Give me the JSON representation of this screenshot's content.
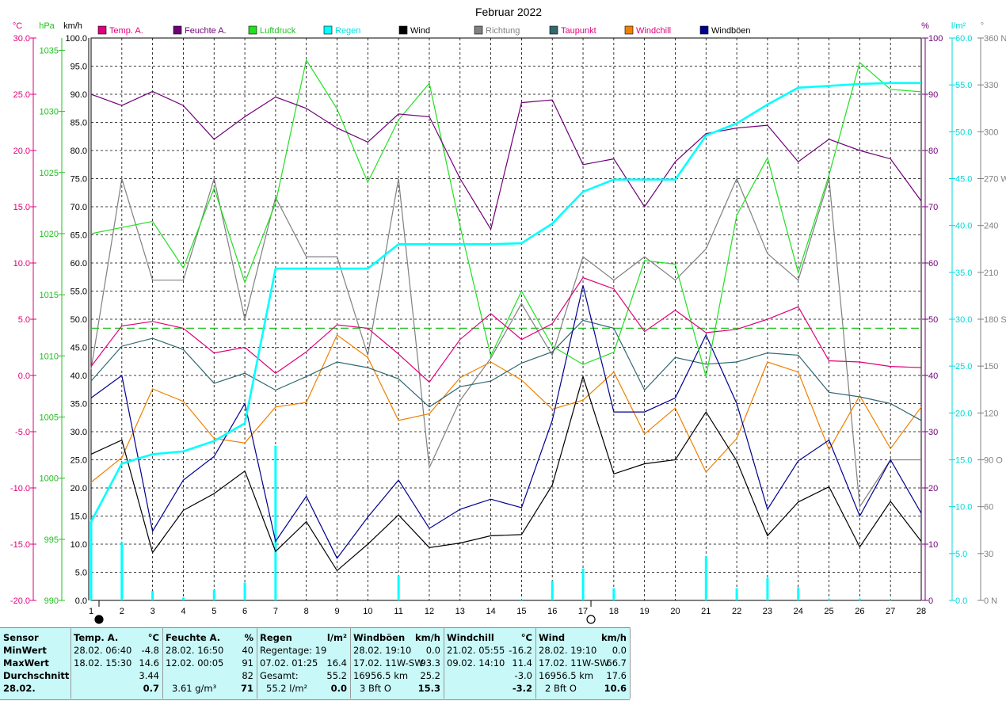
{
  "title": "Februar 2022",
  "axes": {
    "left_units": [
      "°C",
      "hPa",
      "km/h"
    ],
    "right_units": [
      "%",
      "l/m²",
      "°"
    ],
    "temp_ticks": [
      "30.0",
      "25.0",
      "20.0",
      "15.0",
      "10.0",
      "5.0",
      "0.0",
      "-5.0",
      "-10.0",
      "-15.0",
      "-20.0"
    ],
    "hpa_ticks": [
      "1035",
      "1030",
      "1025",
      "1020",
      "1015",
      "1010",
      "1005",
      "1000",
      "995",
      "990"
    ],
    "kmh_ticks": [
      "100.0",
      "95.0",
      "90.0",
      "85.0",
      "80.0",
      "75.0",
      "70.0",
      "65.0",
      "60.0",
      "55.0",
      "50.0",
      "45.0",
      "40.0",
      "35.0",
      "30.0",
      "25.0",
      "20.0",
      "15.0",
      "10.0",
      "5.0",
      "0.0"
    ],
    "pct_ticks": [
      "100",
      "90",
      "80",
      "70",
      "60",
      "50",
      "40",
      "30",
      "20",
      "10",
      "0"
    ],
    "rain_ticks": [
      "60.0",
      "55.0",
      "50.0",
      "45.0",
      "40.0",
      "35.0",
      "30.0",
      "25.0",
      "20.0",
      "15.0",
      "10.0",
      "5.0",
      "0.0"
    ],
    "dir_ticks": [
      "360 N",
      "330",
      "300",
      "270 W",
      "240",
      "210",
      "180 S",
      "150",
      "120",
      "90 O",
      "60",
      "30",
      "0 N"
    ],
    "x_days": [
      "1",
      "2",
      "3",
      "4",
      "5",
      "6",
      "7",
      "8",
      "9",
      "10",
      "11",
      "12",
      "13",
      "14",
      "15",
      "16",
      "17",
      "18",
      "19",
      "20",
      "21",
      "22",
      "23",
      "24",
      "25",
      "26",
      "27",
      "28"
    ]
  },
  "legend": [
    {
      "label": "Temp. A.",
      "color": "#e0007a",
      "text_color": "#e0007a"
    },
    {
      "label": "Feuchte A.",
      "color": "#700078",
      "text_color": "#700078"
    },
    {
      "label": "Luftdruck",
      "color": "#20e020",
      "text_color": "#20c020"
    },
    {
      "label": "Regen",
      "color": "#00ffff",
      "text_color": "#00e0e0"
    },
    {
      "label": "Wind",
      "color": "#000000",
      "text_color": "#000000"
    },
    {
      "label": "Richtung",
      "color": "#808080",
      "text_color": "#808080"
    },
    {
      "label": "Taupunkt",
      "color": "#306870",
      "text_color": "#e0007a"
    },
    {
      "label": "Windchill",
      "color": "#f08000",
      "text_color": "#e0007a"
    },
    {
      "label": "Windböen",
      "color": "#000090",
      "text_color": "#000000"
    }
  ],
  "colors": {
    "temp": "#e0007a",
    "hum": "#700078",
    "press": "#20e020",
    "rain": "#00ffff",
    "wind": "#000000",
    "dir": "#808080",
    "dew": "#306870",
    "chill": "#f08000",
    "gust": "#000090",
    "avg_line": "#20c020",
    "temp_axis": "#e0007a",
    "press_axis": "#20c020",
    "hum_axis": "#700078",
    "rain_axis": "#00d8d8"
  },
  "chart_data": {
    "type": "line",
    "title": "Februar 2022",
    "x": [
      1,
      2,
      3,
      4,
      5,
      6,
      7,
      8,
      9,
      10,
      11,
      12,
      13,
      14,
      15,
      16,
      17,
      18,
      19,
      20,
      21,
      22,
      23,
      24,
      25,
      26,
      27,
      28
    ],
    "temp_range": [
      -20,
      30
    ],
    "pressure_range": [
      990,
      1036
    ],
    "kmh_range": [
      0,
      100
    ],
    "humidity_range": [
      0,
      100
    ],
    "rain_range": [
      0,
      60
    ],
    "direction_range": [
      0,
      360
    ],
    "grid": true,
    "legend_position": "top",
    "reference_line_temp": 4.2,
    "series": [
      {
        "name": "Temp. A.",
        "axis": "temp",
        "values": [
          0.8,
          4.4,
          4.8,
          4.2,
          2.0,
          2.5,
          0.2,
          2.1,
          4.5,
          4.2,
          1.9,
          -0.6,
          3.2,
          5.5,
          3.2,
          4.6,
          8.7,
          7.7,
          3.9,
          5.8,
          3.8,
          4.1,
          5.0,
          6.1,
          1.3,
          1.2,
          0.8,
          0.7
        ]
      },
      {
        "name": "Feuchte A.",
        "axis": "humidity",
        "values": [
          90,
          88,
          90.5,
          88,
          82,
          86,
          89.5,
          87.5,
          84,
          81.5,
          86.5,
          86,
          75,
          66,
          88.5,
          89,
          77.5,
          78.5,
          70,
          78,
          83,
          84,
          84.5,
          78,
          82,
          80,
          78.5,
          71
        ]
      },
      {
        "name": "Luftdruck",
        "axis": "pressure",
        "values": [
          1020.0,
          1020.5,
          1021.0,
          1017.2,
          1023.7,
          1016.0,
          1022.5,
          1034.2,
          1030.2,
          1024.2,
          1029.3,
          1032.3,
          1020.6,
          1010.0,
          1015.3,
          1010.8,
          1009.3,
          1010.3,
          1017.8,
          1017.5,
          1008.3,
          1021.5,
          1026.2,
          1016.8,
          1024.8,
          1034.0,
          1031.8,
          1031.6
        ]
      },
      {
        "name": "Regen",
        "axis": "rain",
        "type": "cumulative",
        "values": [
          8.4,
          14.6,
          15.6,
          15.9,
          17.0,
          18.9,
          35.4,
          35.4,
          35.4,
          35.4,
          38.0,
          38.0,
          38.0,
          38.0,
          38.1,
          40.2,
          43.6,
          44.9,
          44.9,
          44.9,
          49.6,
          50.9,
          52.9,
          54.7,
          54.9,
          55.1,
          55.2,
          55.2
        ]
      },
      {
        "name": "Regen",
        "axis": "rain",
        "type": "daily",
        "values": [
          8.4,
          6.2,
          1.0,
          0.3,
          1.1,
          1.9,
          16.5,
          0,
          0,
          0,
          2.6,
          0,
          0,
          0,
          0.1,
          2.1,
          3.4,
          1.3,
          0,
          0,
          4.7,
          1.3,
          2.4,
          1.4,
          0.2,
          0.2,
          0.1,
          0
        ]
      },
      {
        "name": "Wind",
        "axis": "kmh",
        "values": [
          26.0,
          28.5,
          8.5,
          16.0,
          19.0,
          23.0,
          8.7,
          14.0,
          5.3,
          10.0,
          15.2,
          9.4,
          10.2,
          11.5,
          11.7,
          20.5,
          39.8,
          22.5,
          24.3,
          25.0,
          33.5,
          24.8,
          11.5,
          17.5,
          20.2,
          9.5,
          17.6,
          10.5
        ]
      },
      {
        "name": "Richtung",
        "axis": "direction",
        "values": [
          148,
          270,
          205,
          205,
          270,
          180,
          258,
          220,
          220,
          157,
          270,
          85,
          128,
          155,
          190,
          157,
          220,
          205,
          220,
          205,
          225,
          270,
          222,
          205,
          270,
          60,
          90,
          90
        ]
      },
      {
        "name": "Taupunkt",
        "axis": "temp",
        "values": [
          -0.5,
          2.6,
          3.3,
          2.3,
          -0.7,
          0.2,
          -1.3,
          -0.1,
          1.2,
          0.7,
          -0.3,
          -2.8,
          -1.0,
          -0.5,
          1.1,
          2.1,
          4.9,
          4.2,
          -1.3,
          1.6,
          1.0,
          1.2,
          2.0,
          1.8,
          -1.5,
          -1.9,
          -2.5,
          -4.0
        ]
      },
      {
        "name": "Windchill",
        "axis": "temp",
        "values": [
          -9.5,
          -7.3,
          -1.2,
          -2.3,
          -5.6,
          -6.0,
          -2.8,
          -2.4,
          3.6,
          1.6,
          -4.0,
          -3.4,
          -0.2,
          1.2,
          -0.4,
          -3.0,
          -2.2,
          0.3,
          -5.2,
          -2.9,
          -8.6,
          -5.6,
          1.2,
          0.3,
          -6.6,
          -1.8,
          -6.5,
          -2.8
        ]
      },
      {
        "name": "Windböen",
        "axis": "kmh",
        "values": [
          36.0,
          40.0,
          12.3,
          21.4,
          25.6,
          35.0,
          10.5,
          18.5,
          7.5,
          14.8,
          21.4,
          12.8,
          16.2,
          18.0,
          16.5,
          32.0,
          56.0,
          33.5,
          33.5,
          36.0,
          47.2,
          35.0,
          16.2,
          24.8,
          28.5,
          15.0,
          25.0,
          15.5
        ]
      }
    ],
    "moon_markers": [
      {
        "day": 1,
        "phase": "new"
      },
      {
        "day": 17,
        "phase": "full"
      }
    ]
  },
  "table": {
    "col_sensor": {
      "head": "Sensor",
      "rows": [
        "MinWert",
        "MaxWert",
        "Durchschnitt",
        "28.02."
      ]
    },
    "col_temp": {
      "head": "Temp. A.",
      "unit": "°C",
      "rows": [
        [
          "28.02.  06:40",
          "-4.8"
        ],
        [
          "18.02.  15:30",
          "14.6"
        ],
        [
          "",
          "3.44"
        ],
        [
          "",
          "0.7"
        ]
      ]
    },
    "col_hum": {
      "head": "Feuchte A.",
      "unit": "%",
      "rows": [
        [
          "28.02.  16:50",
          "40"
        ],
        [
          "12.02.  00:05",
          "91"
        ],
        [
          "",
          "82"
        ],
        [
          "3.61 g/m³",
          "71"
        ]
      ]
    },
    "col_rain": {
      "head": "Regen",
      "unit": "l/m²",
      "rows": [
        [
          "Regentage: 19",
          ""
        ],
        [
          "07.02.  01:25",
          "16.4"
        ],
        [
          "Gesamt:",
          "55.2"
        ],
        [
          "55.2 l/m²",
          "0.0"
        ]
      ]
    },
    "col_gust": {
      "head": "Windböen",
      "unit": "km/h",
      "rows": [
        [
          "28.02.  19:10",
          "0.0"
        ],
        [
          "17.02.  11W-SW",
          "93.3"
        ],
        [
          "16956.5 km",
          "25.2"
        ],
        [
          "3 Bft O",
          "15.3"
        ]
      ]
    },
    "col_chill": {
      "head": "Windchill",
      "unit": "°C",
      "rows": [
        [
          "21.02.  05:55",
          "-16.2"
        ],
        [
          "09.02.  14:10",
          "11.4"
        ],
        [
          "",
          "-3.0"
        ],
        [
          "",
          "-3.2"
        ]
      ]
    },
    "col_wind": {
      "head": "Wind",
      "unit": "km/h",
      "rows": [
        [
          "28.02.  19:10",
          "0.0"
        ],
        [
          "17.02.  11W-SW",
          "66.7"
        ],
        [
          "16956.5 km",
          "17.6"
        ],
        [
          "2 Bft O",
          "10.6"
        ]
      ]
    }
  }
}
